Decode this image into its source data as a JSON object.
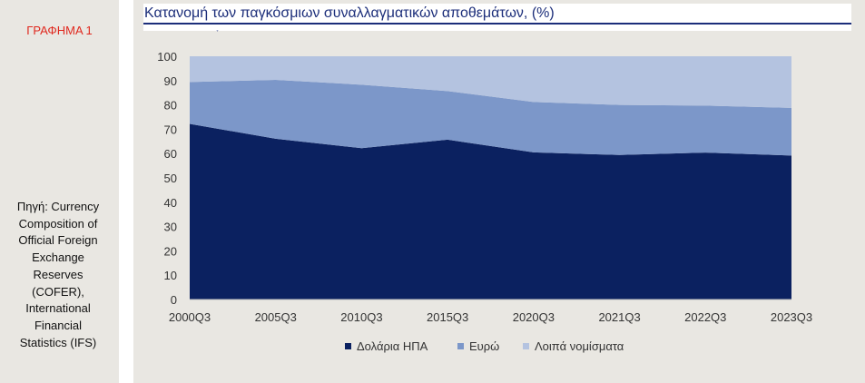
{
  "sidebar": {
    "figure_label": "ΓΡΑΦΗΜΑ 1",
    "source_lines": [
      "Πηγή: Currency",
      "Composition of",
      "Official Foreign",
      "Exchange",
      "Reserves",
      "(COFER),",
      "International",
      "Financial",
      "Statistics (IFS)"
    ]
  },
  "colors": {
    "usd": "#0b2160",
    "eur": "#7c97c9",
    "other": "#b4c3e0",
    "title": "#1c2e7a",
    "label_red": "#e0281e"
  },
  "chart_data": {
    "type": "area",
    "stacked": true,
    "title": "Κατανομή των παγκόσμιων συναλλαγματικών αποθεμάτων, (%)",
    "xlabel": "",
    "ylabel": "",
    "ylim": [
      0,
      100
    ],
    "yticks": [
      0,
      10,
      20,
      30,
      40,
      50,
      60,
      70,
      80,
      90,
      100
    ],
    "categories": [
      "2000Q3",
      "2005Q3",
      "2010Q3",
      "2015Q3",
      "2020Q3",
      "2021Q3",
      "2022Q3",
      "2023Q3"
    ],
    "series": [
      {
        "name": "Δολάρια ΗΠΑ",
        "values": [
          72.2,
          66.1,
          62.2,
          65.7,
          60.5,
          59.4,
          60.4,
          59.2
        ]
      },
      {
        "name": "Ευρώ",
        "values": [
          17.2,
          24.2,
          26.1,
          20.0,
          20.7,
          20.6,
          19.3,
          19.6
        ]
      },
      {
        "name": "Λοιπά νομίσματα",
        "values": [
          10.6,
          9.7,
          11.7,
          14.3,
          18.8,
          20.0,
          20.3,
          21.2
        ]
      }
    ],
    "grid": false,
    "legend_position": "bottom"
  }
}
